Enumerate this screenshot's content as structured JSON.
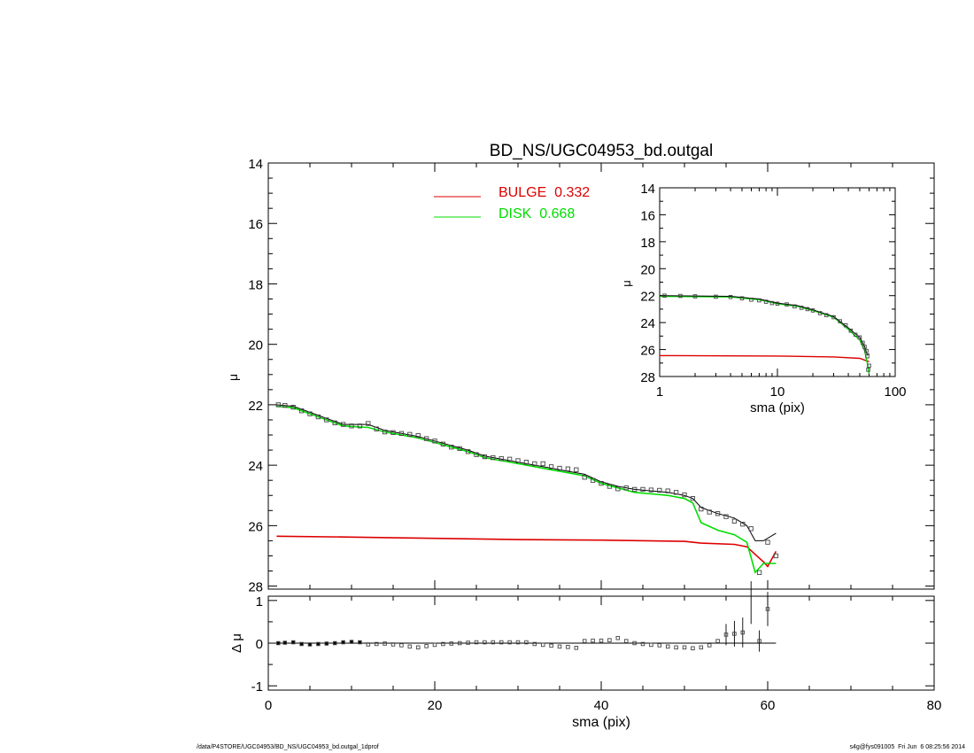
{
  "page": {
    "footer_left": "/data/P4STORE/UGC04953/BD_NS/UGC04953_bd.outgal_1dprof",
    "footer_right": "s4g@fys091005  Fri Jun  6 08:25:56 2014"
  },
  "colors": {
    "bulge": "#dd0000",
    "disk": "#00dd00",
    "model": "#000000",
    "data": "#444444"
  },
  "chart_data": [
    {
      "id": "main",
      "type": "line",
      "title": "BD_NS/UGC04953_bd.outgal",
      "xlabel": "",
      "ylabel": "μ",
      "xlim": [
        0,
        80
      ],
      "ylim": [
        28.1,
        14
      ],
      "yticks": [
        14,
        16,
        18,
        20,
        22,
        24,
        26,
        28
      ],
      "legend": [
        {
          "label": "BULGE",
          "value": "0.332",
          "color": "#dd0000"
        },
        {
          "label": "DISK",
          "value": "0.668",
          "color": "#00dd00"
        }
      ],
      "series": [
        {
          "name": "BULGE",
          "color": "#dd0000",
          "points": [
            [
              1,
              26.35
            ],
            [
              10,
              26.38
            ],
            [
              20,
              26.42
            ],
            [
              30,
              26.46
            ],
            [
              40,
              26.48
            ],
            [
              50,
              26.52
            ],
            [
              52,
              26.58
            ],
            [
              56,
              26.62
            ],
            [
              57.5,
              26.7
            ],
            [
              58.5,
              26.95
            ],
            [
              59.5,
              27.2
            ],
            [
              60,
              27.35
            ],
            [
              61,
              26.85
            ]
          ]
        },
        {
          "name": "DISK",
          "color": "#00dd00",
          "points": [
            [
              1,
              22.05
            ],
            [
              3,
              22.1
            ],
            [
              5,
              22.3
            ],
            [
              7,
              22.5
            ],
            [
              9,
              22.7
            ],
            [
              12,
              22.75
            ],
            [
              14,
              22.9
            ],
            [
              16,
              23.0
            ],
            [
              18,
              23.1
            ],
            [
              20,
              23.25
            ],
            [
              22,
              23.4
            ],
            [
              24,
              23.55
            ],
            [
              26,
              23.75
            ],
            [
              28,
              23.85
            ],
            [
              30,
              23.95
            ],
            [
              32,
              24.05
            ],
            [
              34,
              24.15
            ],
            [
              36,
              24.25
            ],
            [
              38,
              24.35
            ],
            [
              40,
              24.6
            ],
            [
              42,
              24.75
            ],
            [
              44,
              24.9
            ],
            [
              46,
              24.95
            ],
            [
              48,
              25.0
            ],
            [
              50,
              25.1
            ],
            [
              51,
              25.25
            ],
            [
              52,
              25.9
            ],
            [
              54,
              26.15
            ],
            [
              56,
              26.3
            ],
            [
              57.5,
              26.55
            ],
            [
              58.5,
              27.55
            ],
            [
              59.5,
              27.25
            ],
            [
              61,
              27.25
            ]
          ]
        },
        {
          "name": "TOTAL",
          "color": "#000000",
          "points": [
            [
              1,
              22.0
            ],
            [
              3,
              22.05
            ],
            [
              5,
              22.25
            ],
            [
              7,
              22.45
            ],
            [
              9,
              22.65
            ],
            [
              12,
              22.65
            ],
            [
              14,
              22.85
            ],
            [
              16,
              22.95
            ],
            [
              18,
              23.05
            ],
            [
              20,
              23.2
            ],
            [
              22,
              23.35
            ],
            [
              24,
              23.5
            ],
            [
              26,
              23.7
            ],
            [
              28,
              23.8
            ],
            [
              30,
              23.9
            ],
            [
              32,
              24.0
            ],
            [
              34,
              24.1
            ],
            [
              36,
              24.2
            ],
            [
              38,
              24.3
            ],
            [
              40,
              24.55
            ],
            [
              42,
              24.7
            ],
            [
              44,
              24.8
            ],
            [
              46,
              24.85
            ],
            [
              48,
              24.9
            ],
            [
              50,
              25.0
            ],
            [
              51,
              25.1
            ],
            [
              52,
              25.4
            ],
            [
              54,
              25.6
            ],
            [
              56,
              25.75
            ],
            [
              57.5,
              26.0
            ],
            [
              58.5,
              26.5
            ],
            [
              59.5,
              26.5
            ],
            [
              61,
              26.25
            ]
          ]
        },
        {
          "name": "DATA",
          "color": "#444444",
          "marker": "square",
          "points": [
            [
              1.2,
              22.0
            ],
            [
              2,
              22.02
            ],
            [
              3,
              22.08
            ],
            [
              4,
              22.2
            ],
            [
              5,
              22.3
            ],
            [
              6,
              22.4
            ],
            [
              7,
              22.5
            ],
            [
              8,
              22.6
            ],
            [
              9,
              22.65
            ],
            [
              10,
              22.7
            ],
            [
              11,
              22.7
            ],
            [
              12,
              22.62
            ],
            [
              13,
              22.8
            ],
            [
              14,
              22.9
            ],
            [
              15,
              22.92
            ],
            [
              16,
              22.95
            ],
            [
              17,
              22.98
            ],
            [
              18,
              23.02
            ],
            [
              19,
              23.12
            ],
            [
              20,
              23.2
            ],
            [
              21,
              23.3
            ],
            [
              22,
              23.4
            ],
            [
              23,
              23.45
            ],
            [
              24,
              23.55
            ],
            [
              25,
              23.65
            ],
            [
              26,
              23.72
            ],
            [
              27,
              23.75
            ],
            [
              28,
              23.78
            ],
            [
              29,
              23.8
            ],
            [
              30,
              23.85
            ],
            [
              31,
              23.9
            ],
            [
              32,
              23.95
            ],
            [
              33,
              23.95
            ],
            [
              34,
              24.05
            ],
            [
              35,
              24.1
            ],
            [
              36,
              24.12
            ],
            [
              37,
              24.15
            ],
            [
              38,
              24.4
            ],
            [
              39,
              24.5
            ],
            [
              40,
              24.6
            ],
            [
              41,
              24.7
            ],
            [
              42,
              24.78
            ],
            [
              43,
              24.75
            ],
            [
              44,
              24.8
            ],
            [
              45,
              24.8
            ],
            [
              46,
              24.82
            ],
            [
              47,
              24.83
            ],
            [
              48,
              24.85
            ],
            [
              49,
              24.9
            ],
            [
              50,
              24.98
            ],
            [
              51,
              25.1
            ],
            [
              52,
              25.45
            ],
            [
              53,
              25.55
            ],
            [
              54,
              25.6
            ],
            [
              55,
              25.7
            ],
            [
              56,
              25.85
            ],
            [
              57,
              25.95
            ],
            [
              58,
              26.1
            ],
            [
              59,
              27.55
            ],
            [
              60,
              26.55
            ],
            [
              61,
              27.0
            ]
          ]
        }
      ]
    },
    {
      "id": "inset",
      "type": "line",
      "xlabel": "sma (pix)",
      "ylabel": "μ",
      "xscale": "log",
      "xlim": [
        1,
        100
      ],
      "xticks": [
        1,
        10,
        100
      ],
      "ylim": [
        28,
        14
      ],
      "yticks": [
        14,
        16,
        18,
        20,
        22,
        24,
        26,
        28
      ],
      "series": [
        {
          "name": "BULGE",
          "color": "#dd0000",
          "points": [
            [
              1,
              26.45
            ],
            [
              10,
              26.48
            ],
            [
              30,
              26.55
            ],
            [
              50,
              26.65
            ],
            [
              60,
              26.9
            ]
          ]
        },
        {
          "name": "DISK",
          "color": "#00dd00",
          "points": [
            [
              1,
              22.05
            ],
            [
              4,
              22.1
            ],
            [
              7,
              22.3
            ],
            [
              10,
              22.6
            ],
            [
              15,
              22.8
            ],
            [
              20,
              23.1
            ],
            [
              30,
              23.6
            ],
            [
              40,
              24.5
            ],
            [
              50,
              25.3
            ],
            [
              55,
              26.1
            ],
            [
              58,
              27.0
            ],
            [
              60,
              27.8
            ]
          ]
        },
        {
          "name": "TOTAL",
          "color": "#000000",
          "points": [
            [
              1,
              22.0
            ],
            [
              4,
              22.05
            ],
            [
              7,
              22.25
            ],
            [
              10,
              22.55
            ],
            [
              15,
              22.75
            ],
            [
              20,
              23.05
            ],
            [
              30,
              23.55
            ],
            [
              40,
              24.4
            ],
            [
              50,
              25.1
            ],
            [
              55,
              25.8
            ],
            [
              58,
              26.4
            ],
            [
              60,
              26.3
            ]
          ]
        },
        {
          "name": "DATA",
          "color": "#444444",
          "marker": "square",
          "points": [
            [
              1.1,
              22.0
            ],
            [
              1.5,
              22.02
            ],
            [
              2,
              22.05
            ],
            [
              3,
              22.08
            ],
            [
              4,
              22.1
            ],
            [
              5,
              22.2
            ],
            [
              6,
              22.3
            ],
            [
              7,
              22.35
            ],
            [
              8,
              22.45
            ],
            [
              9,
              22.55
            ],
            [
              10,
              22.6
            ],
            [
              12,
              22.65
            ],
            [
              14,
              22.8
            ],
            [
              16,
              22.9
            ],
            [
              18,
              23.0
            ],
            [
              20,
              23.1
            ],
            [
              23,
              23.3
            ],
            [
              26,
              23.45
            ],
            [
              30,
              23.6
            ],
            [
              34,
              23.9
            ],
            [
              38,
              24.2
            ],
            [
              42,
              24.6
            ],
            [
              46,
              24.9
            ],
            [
              50,
              25.1
            ],
            [
              53,
              25.5
            ],
            [
              55,
              25.8
            ],
            [
              57,
              26.1
            ],
            [
              58,
              26.5
            ],
            [
              59,
              27.5
            ],
            [
              60,
              27.2
            ]
          ]
        }
      ]
    },
    {
      "id": "residual",
      "type": "scatter",
      "xlabel": "sma (pix)",
      "ylabel": "Δ μ",
      "xlim": [
        0,
        80
      ],
      "xticks": [
        0,
        20,
        40,
        60,
        80
      ],
      "ylim": [
        -1.1,
        1.1
      ],
      "yticks": [
        1,
        0,
        -1
      ],
      "zero_line": [
        1,
        61
      ],
      "points": [
        [
          1.2,
          0.0
        ],
        [
          2,
          0.01
        ],
        [
          3,
          0.02
        ],
        [
          4,
          -0.02
        ],
        [
          5,
          -0.03
        ],
        [
          6,
          -0.02
        ],
        [
          7,
          -0.01
        ],
        [
          8,
          0.0
        ],
        [
          9,
          0.02
        ],
        [
          10,
          0.03
        ],
        [
          11,
          0.02
        ],
        [
          12,
          -0.03
        ],
        [
          13,
          -0.02
        ],
        [
          14,
          -0.01
        ],
        [
          15,
          -0.03
        ],
        [
          16,
          -0.05
        ],
        [
          17,
          -0.08
        ],
        [
          18,
          -0.1
        ],
        [
          19,
          -0.07
        ],
        [
          20,
          -0.04
        ],
        [
          21,
          -0.02
        ],
        [
          22,
          -0.01
        ],
        [
          23,
          0.0
        ],
        [
          24,
          0.01
        ],
        [
          25,
          0.02
        ],
        [
          26,
          0.02
        ],
        [
          27,
          0.02
        ],
        [
          28,
          0.02
        ],
        [
          29,
          0.02
        ],
        [
          30,
          0.02
        ],
        [
          31,
          0.02
        ],
        [
          32,
          -0.02
        ],
        [
          33,
          -0.04
        ],
        [
          34,
          -0.06
        ],
        [
          35,
          -0.08
        ],
        [
          36,
          -0.09
        ],
        [
          37,
          -0.11
        ],
        [
          38,
          0.05
        ],
        [
          39,
          0.06
        ],
        [
          40,
          0.06
        ],
        [
          41,
          0.07
        ],
        [
          42,
          0.12
        ],
        [
          43,
          0.05
        ],
        [
          44,
          0.0
        ],
        [
          45,
          -0.02
        ],
        [
          46,
          -0.04
        ],
        [
          47,
          -0.05
        ],
        [
          48,
          -0.08
        ],
        [
          49,
          -0.1
        ],
        [
          50,
          -0.1
        ],
        [
          51,
          -0.12
        ],
        [
          52,
          -0.1
        ],
        [
          53,
          -0.05
        ],
        [
          54,
          0.05
        ],
        [
          55,
          0.2
        ],
        [
          56,
          0.22
        ],
        [
          57,
          0.25
        ],
        [
          59,
          0.05
        ],
        [
          60,
          0.8
        ]
      ],
      "error_bars": [
        [
          55,
          0.2,
          0.25
        ],
        [
          56,
          0.22,
          0.3
        ],
        [
          57,
          0.25,
          0.35
        ],
        [
          58,
          0.95,
          0.5
        ],
        [
          59,
          0.05,
          0.25
        ],
        [
          60,
          0.8,
          0.4
        ]
      ]
    }
  ],
  "axes": {
    "main_title": "BD_NS/UGC04953_bd.outgal",
    "main_ylabel": "μ",
    "legend_bulge": "BULGE  0.332",
    "legend_disk": "DISK  0.668",
    "inset_xlabel": "sma (pix)",
    "inset_ylabel": "μ",
    "res_ylabel": "Δ μ",
    "res_xlabel": "sma (pix)"
  }
}
